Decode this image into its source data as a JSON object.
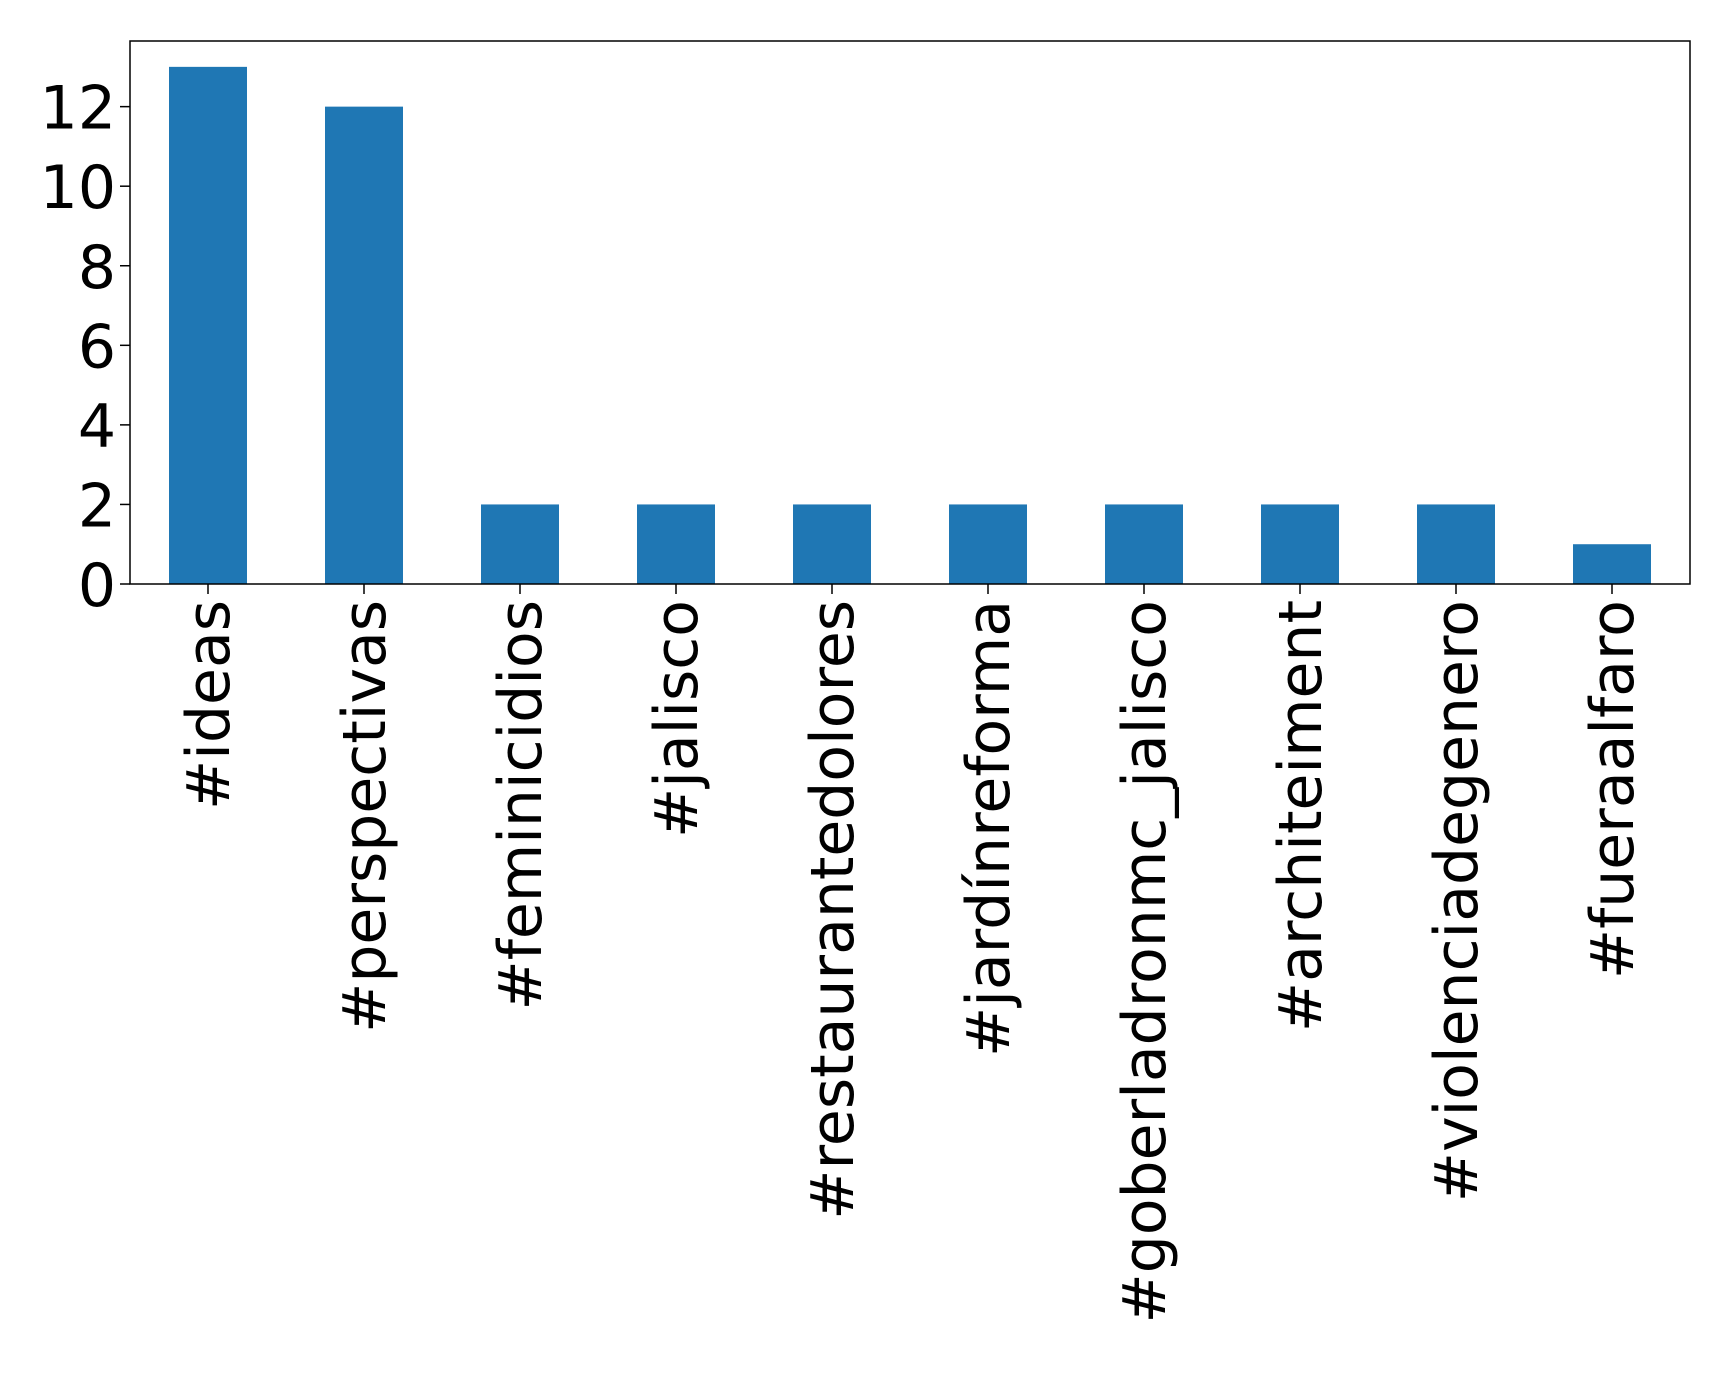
{
  "chart_data": {
    "type": "bar",
    "categories": [
      "#ideas",
      "#perspectivas",
      "#feminicidios",
      "#jalisco",
      "#restaurantedolores",
      "#jardínreforma",
      "#goberladronmc_jalisco",
      "#architeiment",
      "#violenciadegenero",
      "#fueraalfaro"
    ],
    "values": [
      13,
      12,
      2,
      2,
      2,
      2,
      2,
      2,
      2,
      1
    ],
    "title": "",
    "xlabel": "",
    "ylabel": "",
    "ylim": [
      0,
      13.65
    ],
    "yticks": [
      0,
      2,
      4,
      6,
      8,
      10,
      12
    ],
    "grid": false,
    "bar_color": "#1f77b4"
  }
}
